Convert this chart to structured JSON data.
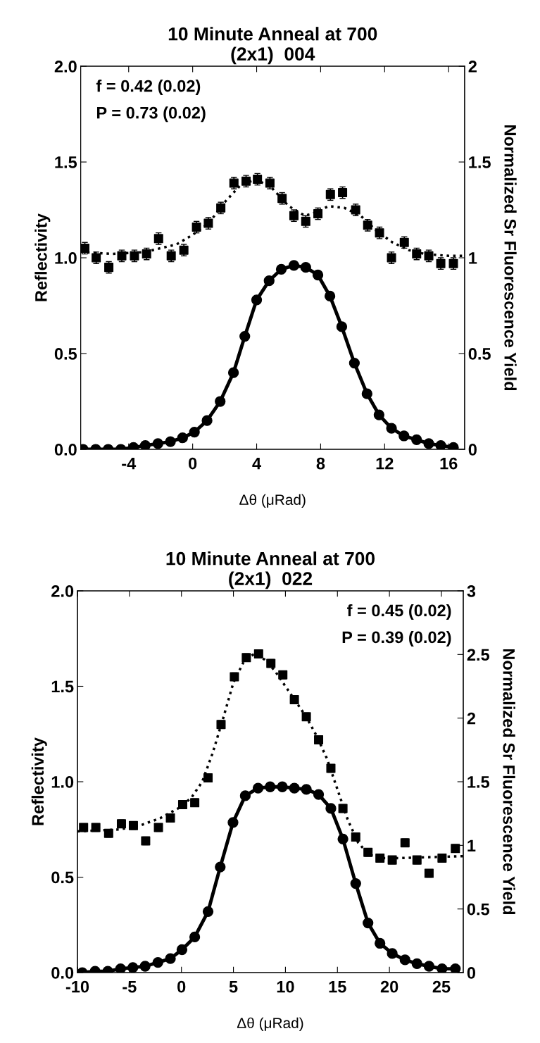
{
  "chart_data": [
    {
      "type": "scatter",
      "title": "10 Minute Anneal at 700",
      "subtitle": "(2x1)  004",
      "xlabel": "Δθ (μRad)",
      "ylabel": "Reflectivity",
      "y2label": "Normalized Sr Fluorescence Yield",
      "annotations": [
        "f = 0.42 (0.02)",
        "P = 0.73 (0.02)"
      ],
      "xlim": [
        -7,
        17
      ],
      "xticks": [
        -4,
        0,
        4,
        8,
        12,
        16
      ],
      "ylim": [
        0,
        2
      ],
      "yticks": [
        {
          "value": 0,
          "label": "0.0"
        },
        {
          "value": 0.5,
          "label": "0.5"
        },
        {
          "value": 1,
          "label": "1.0"
        },
        {
          "value": 1.5,
          "label": "1.5"
        },
        {
          "value": 2,
          "label": "2.0"
        }
      ],
      "y2lim": [
        0,
        2
      ],
      "y2ticks": [
        0,
        0.5,
        1,
        1.5,
        2
      ],
      "grid": false,
      "legend": false,
      "series": [
        {
          "marker": "square",
          "color": "#000000",
          "x": [
            -6.74,
            -6.03,
            -5.24,
            -4.43,
            -3.64,
            -2.88,
            -2.13,
            -1.34,
            -0.55,
            0.24,
            0.98,
            1.76,
            2.58,
            3.34,
            4.05,
            4.83,
            5.59,
            6.33,
            7.07,
            7.83,
            8.61,
            9.37,
            10.19,
            10.94,
            11.68,
            12.43,
            13.23,
            14.0,
            14.76,
            15.51,
            16.3
          ],
          "values": [
            1.05,
            1.0,
            0.95,
            1.01,
            1.01,
            1.02,
            1.1,
            1.01,
            1.04,
            1.16,
            1.18,
            1.26,
            1.39,
            1.4,
            1.41,
            1.39,
            1.31,
            1.22,
            1.19,
            1.23,
            1.33,
            1.34,
            1.25,
            1.17,
            1.13,
            1.0,
            1.08,
            1.02,
            1.01,
            0.97,
            0.97
          ],
          "errors": [
            0.03,
            0.03,
            0.03,
            0.03,
            0.03,
            0.03,
            0.03,
            0.03,
            0.03,
            0.03,
            0.03,
            0.03,
            0.03,
            0.03,
            0.03,
            0.03,
            0.03,
            0.03,
            0.03,
            0.03,
            0.03,
            0.03,
            0.03,
            0.03,
            0.03,
            0.03,
            0.03,
            0.03,
            0.03,
            0.03,
            0.03
          ]
        },
        {
          "type": "line",
          "line_style": "dotted",
          "marker": "none",
          "color": "#000000",
          "x": [
            -7,
            -5,
            -3,
            -1,
            0,
            1,
            2,
            3,
            4,
            5,
            6,
            7,
            7.5,
            8.5,
            9.5,
            10.5,
            11.5,
            12.5,
            13.5,
            14.5,
            16,
            17
          ],
          "values": [
            1.03,
            1.02,
            1.03,
            1.07,
            1.12,
            1.18,
            1.29,
            1.38,
            1.41,
            1.36,
            1.27,
            1.22,
            1.23,
            1.27,
            1.26,
            1.22,
            1.14,
            1.08,
            1.04,
            1.02,
            1.01,
            1.01
          ]
        },
        {
          "type": "line",
          "axis": "y2",
          "line_style": "solid",
          "marker": "circle",
          "color": "#000000",
          "x": [
            -6.85,
            -6.06,
            -5.28,
            -4.49,
            -3.7,
            -2.96,
            -2.17,
            -1.39,
            -0.63,
            0.11,
            0.9,
            1.72,
            2.55,
            3.26,
            4.0,
            4.78,
            5.54,
            6.33,
            7.07,
            7.83,
            8.58,
            9.32,
            10.11,
            10.9,
            11.65,
            12.43,
            13.21,
            14.0,
            14.76,
            15.51,
            16.3
          ],
          "values": [
            0.0,
            0.0,
            0.0,
            0.0,
            0.01,
            0.02,
            0.03,
            0.04,
            0.06,
            0.09,
            0.15,
            0.25,
            0.4,
            0.59,
            0.78,
            0.88,
            0.94,
            0.96,
            0.95,
            0.91,
            0.8,
            0.64,
            0.45,
            0.29,
            0.18,
            0.11,
            0.07,
            0.05,
            0.03,
            0.02,
            0.01
          ]
        }
      ]
    },
    {
      "type": "scatter",
      "title": "10 Minute Anneal at 700",
      "subtitle": "(2x1)  022",
      "xlabel": "Δθ (μRad)",
      "ylabel": "Reflectivity",
      "y2label": "Normalized Sr Fluorescence Yield",
      "annotations": [
        "f = 0.45 (0.02)",
        "P = 0.39 (0.02)"
      ],
      "xlim": [
        -10,
        27.1
      ],
      "xticks": [
        -10,
        -5,
        0,
        5,
        10,
        15,
        20,
        25
      ],
      "ylim": [
        0,
        2
      ],
      "yticks": [
        {
          "value": 0,
          "label": "0.0"
        },
        {
          "value": 0.5,
          "label": "0.5"
        },
        {
          "value": 1,
          "label": "1.0"
        },
        {
          "value": 1.5,
          "label": "1.5"
        },
        {
          "value": 2,
          "label": "2.0"
        }
      ],
      "y2lim": [
        0,
        3
      ],
      "y2ticks": [
        0,
        0.5,
        1,
        1.5,
        2,
        2.5,
        3
      ],
      "grid": false,
      "legend": false,
      "series": [
        {
          "marker": "square",
          "color": "#000000",
          "x": [
            -9.41,
            -8.23,
            -7.0,
            -5.77,
            -4.62,
            -3.44,
            -2.21,
            -1.06,
            0.12,
            1.28,
            2.56,
            3.81,
            5.09,
            6.24,
            7.42,
            8.6,
            9.75,
            10.86,
            12.01,
            13.19,
            14.37,
            15.53,
            16.76,
            17.94,
            19.09,
            20.27,
            21.5,
            22.65,
            23.81,
            25.06,
            26.34
          ],
          "values": [
            0.76,
            0.76,
            0.73,
            0.78,
            0.77,
            0.69,
            0.76,
            0.81,
            0.88,
            0.89,
            1.02,
            1.3,
            1.55,
            1.65,
            1.67,
            1.62,
            1.56,
            1.43,
            1.34,
            1.22,
            1.07,
            0.86,
            0.71,
            0.63,
            0.6,
            0.59,
            0.68,
            0.59,
            0.52,
            0.6,
            0.65
          ],
          "errors": [
            0.02,
            0.02,
            0.02,
            0.02,
            0.02,
            0.02,
            0.02,
            0.02,
            0.02,
            0.02,
            0.02,
            0.02,
            0.02,
            0.02,
            0.02,
            0.02,
            0.02,
            0.02,
            0.02,
            0.02,
            0.02,
            0.02,
            0.02,
            0.02,
            0.02,
            0.02,
            0.02,
            0.02,
            0.02,
            0.02,
            0.02
          ]
        },
        {
          "type": "line",
          "line_style": "dotted",
          "marker": "none",
          "color": "#000000",
          "x": [
            -10,
            -6,
            -4,
            -2,
            0,
            1,
            2,
            3,
            4,
            5,
            6,
            7,
            8,
            9,
            10,
            11,
            12,
            13,
            14,
            15,
            16,
            17,
            18,
            19,
            21,
            27.1
          ],
          "values": [
            0.74,
            0.75,
            0.77,
            0.81,
            0.87,
            0.92,
            1.0,
            1.15,
            1.33,
            1.52,
            1.63,
            1.67,
            1.64,
            1.58,
            1.5,
            1.42,
            1.34,
            1.24,
            1.12,
            0.96,
            0.8,
            0.68,
            0.62,
            0.6,
            0.6,
            0.61
          ]
        },
        {
          "type": "line",
          "axis": "y2",
          "line_style": "solid",
          "marker": "circle",
          "color": "#000000",
          "x": [
            -9.53,
            -8.3,
            -7.08,
            -5.85,
            -4.67,
            -3.49,
            -2.26,
            -1.06,
            0.05,
            1.28,
            2.56,
            3.73,
            4.96,
            6.14,
            7.37,
            8.53,
            9.7,
            10.86,
            12.01,
            13.19,
            14.37,
            15.53,
            16.76,
            17.94,
            19.09,
            20.27,
            21.5,
            22.65,
            23.81,
            25.06,
            26.34
          ],
          "values": [
            0.0,
            0.01,
            0.01,
            0.03,
            0.04,
            0.05,
            0.08,
            0.11,
            0.18,
            0.28,
            0.48,
            0.83,
            1.18,
            1.39,
            1.45,
            1.46,
            1.46,
            1.45,
            1.44,
            1.4,
            1.29,
            1.05,
            0.7,
            0.39,
            0.23,
            0.15,
            0.1,
            0.07,
            0.05,
            0.03,
            0.03
          ]
        }
      ]
    }
  ]
}
